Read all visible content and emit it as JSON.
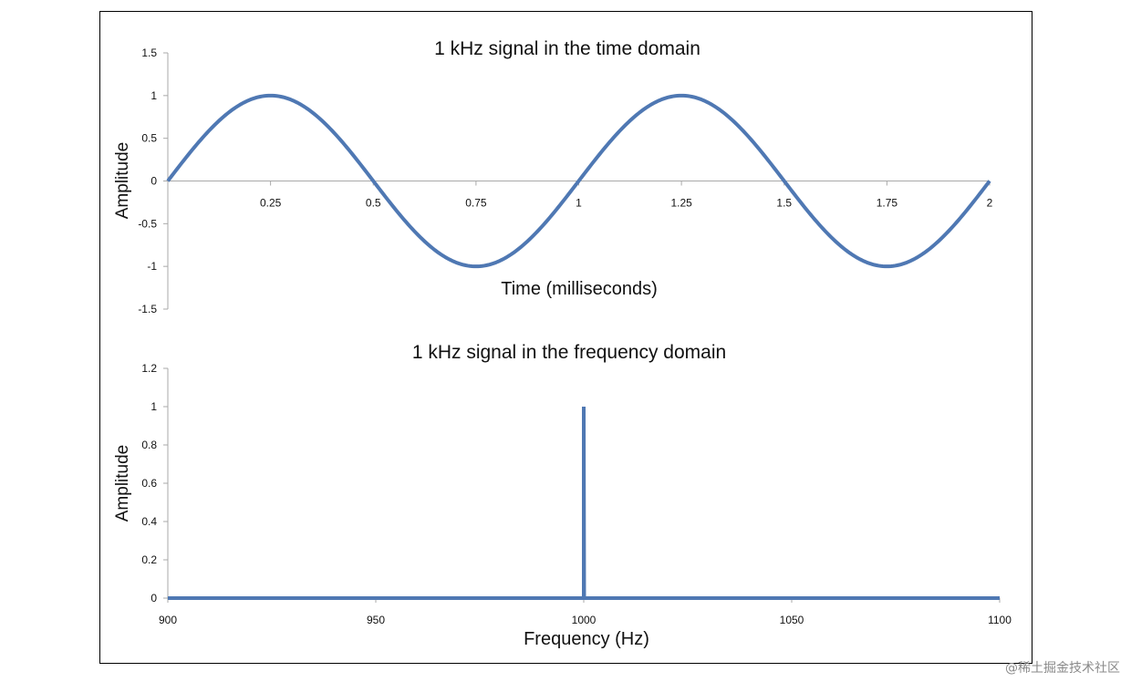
{
  "watermark": "@稀土掘金技术社区",
  "chart_data": [
    {
      "type": "line",
      "title": "1 kHz signal in the time domain",
      "xlabel": "Time (milliseconds)",
      "ylabel": "Amplitude",
      "xlim": [
        0,
        2
      ],
      "ylim": [
        -1.5,
        1.5
      ],
      "xticks": [
        "0.25",
        "0.5",
        "0.75",
        "1",
        "1.25",
        "1.5",
        "1.75",
        "2"
      ],
      "yticks": [
        "1.5",
        "1",
        "0.5",
        "0",
        "-0.5",
        "-1",
        "-1.5"
      ],
      "series": [
        {
          "function": "sin(2*pi*1*t)",
          "frequency_khz": 1,
          "amplitude": 1,
          "color": "#4f78b3"
        }
      ]
    },
    {
      "type": "line",
      "title": "1 kHz signal in the frequency domain",
      "xlabel": "Frequency (Hz)",
      "ylabel": "Amplitude",
      "xlim": [
        900,
        1100
      ],
      "ylim": [
        0,
        1.2
      ],
      "xticks": [
        "900",
        "950",
        "1000",
        "1050",
        "1100"
      ],
      "yticks": [
        "1.2",
        "1",
        "0.8",
        "0.6",
        "0.4",
        "0.2",
        "0"
      ],
      "series": [
        {
          "x": [
            900,
            999.9,
            1000,
            1000,
            1000.1,
            1100
          ],
          "y": [
            0,
            0,
            0,
            1,
            0,
            0
          ],
          "color": "#4f78b3"
        }
      ]
    }
  ]
}
